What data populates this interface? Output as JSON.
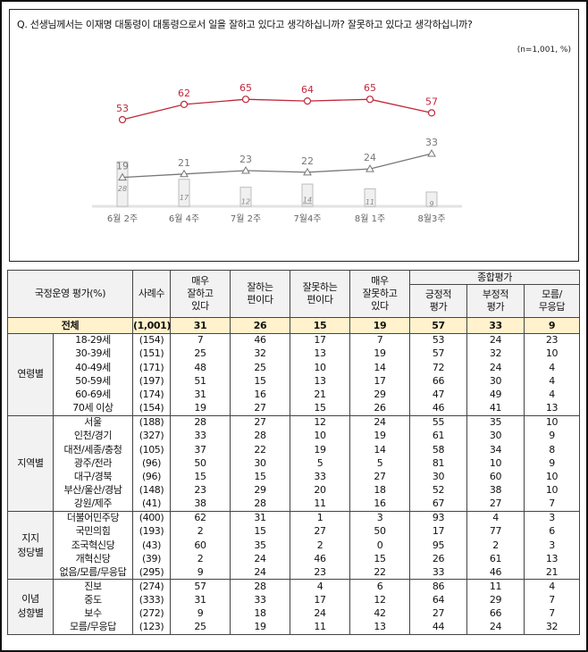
{
  "question": "Q. 선생님께서는 이재명 대통령이 대통령으로서 일을 잘하고 있다고 생각하십니까? 잘못하고 있다고 생각하십니까?",
  "note": "(n=1,001, %)",
  "chart_data": {
    "type": "line",
    "categories": [
      "6월 2주",
      "6월 4주",
      "7월 2주",
      "7월4주",
      "8월 1주",
      "8월3주"
    ],
    "series": [
      {
        "type": "line",
        "marker": "circle",
        "color": "#c0283a",
        "values": [
          53,
          62,
          65,
          64,
          65,
          57
        ]
      },
      {
        "type": "line",
        "marker": "triangle",
        "color": "#777777",
        "values": [
          19,
          21,
          23,
          22,
          24,
          33
        ]
      },
      {
        "type": "bar",
        "color": "#f0f0f0",
        "values": [
          28,
          17,
          12,
          14,
          11,
          9
        ],
        "underlined_index": 3
      }
    ],
    "grid": false
  },
  "table": {
    "header": {
      "label": "국정운영 평가(%)",
      "n": "사례수",
      "c1": "매우\n잘하고\n있다",
      "c2": "잘하는\n편이다",
      "c3": "잘못하는\n편이다",
      "c4": "매우\n잘못하고\n있다",
      "summary": "종합평가",
      "s1": "긍정적\n평가",
      "s2": "부정적\n평가",
      "s3": "모름/\n무응답"
    },
    "total": {
      "label": "전체",
      "n": "(1,001)",
      "v": [
        "31",
        "26",
        "15",
        "19",
        "57",
        "33",
        "9"
      ]
    },
    "groups": [
      {
        "name": "연령별",
        "rows": [
          {
            "label": "18-29세",
            "n": "(154)",
            "v": [
              "7",
              "46",
              "17",
              "7",
              "53",
              "24",
              "23"
            ]
          },
          {
            "label": "30-39세",
            "n": "(151)",
            "v": [
              "25",
              "32",
              "13",
              "19",
              "57",
              "32",
              "10"
            ]
          },
          {
            "label": "40-49세",
            "n": "(171)",
            "v": [
              "48",
              "25",
              "10",
              "14",
              "72",
              "24",
              "4"
            ]
          },
          {
            "label": "50-59세",
            "n": "(197)",
            "v": [
              "51",
              "15",
              "13",
              "17",
              "66",
              "30",
              "4"
            ]
          },
          {
            "label": "60-69세",
            "n": "(174)",
            "v": [
              "31",
              "16",
              "21",
              "29",
              "47",
              "49",
              "4"
            ]
          },
          {
            "label": "70세 이상",
            "n": "(154)",
            "v": [
              "19",
              "27",
              "15",
              "26",
              "46",
              "41",
              "13"
            ]
          }
        ]
      },
      {
        "name": "지역별",
        "rows": [
          {
            "label": "서울",
            "n": "(188)",
            "v": [
              "28",
              "27",
              "12",
              "24",
              "55",
              "35",
              "10"
            ]
          },
          {
            "label": "인천/경기",
            "n": "(327)",
            "v": [
              "33",
              "28",
              "10",
              "19",
              "61",
              "30",
              "9"
            ]
          },
          {
            "label": "대전/세종/충청",
            "n": "(105)",
            "v": [
              "37",
              "22",
              "19",
              "14",
              "58",
              "34",
              "8"
            ]
          },
          {
            "label": "광주/전라",
            "n": "(96)",
            "v": [
              "50",
              "30",
              "5",
              "5",
              "81",
              "10",
              "9"
            ]
          },
          {
            "label": "대구/경북",
            "n": "(96)",
            "v": [
              "15",
              "15",
              "33",
              "27",
              "30",
              "60",
              "10"
            ]
          },
          {
            "label": "부산/울산/경남",
            "n": "(148)",
            "v": [
              "23",
              "29",
              "20",
              "18",
              "52",
              "38",
              "10"
            ]
          },
          {
            "label": "강원/제주",
            "n": "(41)",
            "v": [
              "38",
              "28",
              "11",
              "16",
              "67",
              "27",
              "7"
            ]
          }
        ]
      },
      {
        "name": "지지\n정당별",
        "rows": [
          {
            "label": "더불어민주당",
            "n": "(400)",
            "v": [
              "62",
              "31",
              "1",
              "3",
              "93",
              "4",
              "3"
            ]
          },
          {
            "label": "국민의힘",
            "n": "(193)",
            "v": [
              "2",
              "15",
              "27",
              "50",
              "17",
              "77",
              "6"
            ]
          },
          {
            "label": "조국혁신당",
            "n": "(43)",
            "v": [
              "60",
              "35",
              "2",
              "0",
              "95",
              "2",
              "3"
            ]
          },
          {
            "label": "개혁신당",
            "n": "(39)",
            "v": [
              "2",
              "24",
              "46",
              "15",
              "26",
              "61",
              "13"
            ]
          },
          {
            "label": "없음/모름/무응답",
            "n": "(295)",
            "v": [
              "9",
              "24",
              "23",
              "22",
              "33",
              "46",
              "21"
            ]
          }
        ]
      },
      {
        "name": "이념\n성향별",
        "rows": [
          {
            "label": "진보",
            "n": "(274)",
            "v": [
              "57",
              "28",
              "4",
              "6",
              "86",
              "11",
              "4"
            ]
          },
          {
            "label": "중도",
            "n": "(333)",
            "v": [
              "31",
              "33",
              "17",
              "12",
              "64",
              "29",
              "7"
            ]
          },
          {
            "label": "보수",
            "n": "(272)",
            "v": [
              "9",
              "18",
              "24",
              "42",
              "27",
              "66",
              "7"
            ]
          },
          {
            "label": "모름/무응답",
            "n": "(123)",
            "v": [
              "25",
              "19",
              "11",
              "13",
              "44",
              "24",
              "32"
            ]
          }
        ]
      }
    ]
  }
}
